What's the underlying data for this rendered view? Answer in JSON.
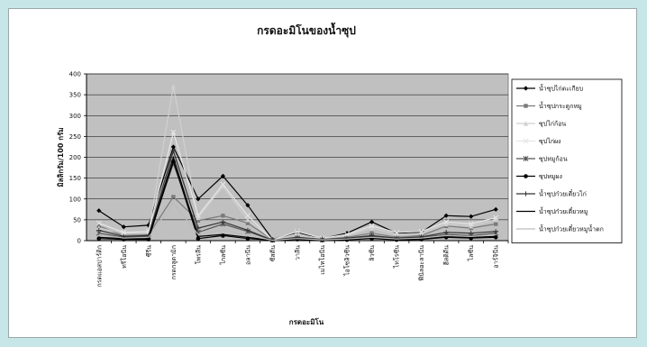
{
  "chart_data": {
    "type": "line",
    "title": "กรดอะมิโนของน้ำซุป",
    "xlabel": "กรดอะมิโน",
    "ylabel": "มิลลิกรัม/100 กรัม",
    "ylim": [
      0,
      400
    ],
    "yticks": [
      0,
      50,
      100,
      150,
      200,
      250,
      300,
      350,
      400
    ],
    "grid": true,
    "legend_position": "right",
    "plot_background": "#c0c0c0",
    "categories": [
      "กรดแอสปาร์ติก",
      "ทรีโอนีน",
      "ซีรีน",
      "กรดกลูตามิก",
      "โพรลีน",
      "ไกลซีน",
      "อลานีน",
      "ซีสตีน",
      "วาลีน",
      "เมไทโอนีน",
      "ไอโซลิวซีน",
      "ลิวซีน",
      "ไทโรซีน",
      "ฟีนิลอะลานีน",
      "ฮีสติดีน",
      "ไลซีน",
      "อาร์จินีน"
    ],
    "series": [
      {
        "name": "น้ำซุปไก่ตะเกียบ",
        "color": "#000000",
        "marker": "diamond",
        "values": [
          72,
          33,
          37,
          225,
          100,
          155,
          85,
          3,
          20,
          5,
          18,
          45,
          18,
          20,
          60,
          58,
          75
        ]
      },
      {
        "name": "น้ำซุปกระดูกหมู",
        "color": "#7a7a7a",
        "marker": "square",
        "values": [
          35,
          12,
          14,
          105,
          48,
          60,
          42,
          2,
          8,
          3,
          8,
          18,
          8,
          12,
          35,
          30,
          40
        ]
      },
      {
        "name": "ซุปไก่ก้อน",
        "color": "#d0d0d0",
        "marker": "triangle",
        "values": [
          30,
          18,
          20,
          370,
          55,
          130,
          50,
          2,
          15,
          5,
          12,
          30,
          15,
          18,
          40,
          35,
          50
        ]
      },
      {
        "name": "ซุปไก่ผง",
        "color": "#e6e6e6",
        "marker": "x",
        "values": [
          42,
          20,
          22,
          260,
          60,
          135,
          60,
          2,
          22,
          6,
          15,
          35,
          20,
          22,
          45,
          40,
          55
        ]
      },
      {
        "name": "ซุปหมูก้อน",
        "color": "#555555",
        "marker": "star",
        "values": [
          18,
          8,
          10,
          185,
          20,
          40,
          22,
          1,
          6,
          2,
          5,
          10,
          5,
          8,
          15,
          12,
          18
        ]
      },
      {
        "name": "ซุปหมูผง",
        "color": "#000000",
        "marker": "circle",
        "values": [
          5,
          3,
          3,
          190,
          5,
          12,
          5,
          1,
          3,
          1,
          2,
          5,
          2,
          3,
          8,
          6,
          8
        ]
      },
      {
        "name": "น้ำซุปก๋วยเตี๋ยวไก่",
        "color": "#333333",
        "marker": "plus",
        "values": [
          25,
          10,
          12,
          215,
          30,
          45,
          25,
          1,
          8,
          3,
          6,
          12,
          6,
          9,
          20,
          18,
          22
        ]
      },
      {
        "name": "น้ำซุปก๋วยเตี๋ยวหมู",
        "color": "#000000",
        "marker": "none",
        "values": [
          8,
          5,
          6,
          200,
          10,
          15,
          8,
          1,
          4,
          1,
          3,
          6,
          3,
          4,
          10,
          8,
          10
        ]
      },
      {
        "name": "น้ำซุปก๋วยเตี๋ยวหมูน้ำตก",
        "color": "#bcbcbc",
        "marker": "none",
        "values": [
          15,
          6,
          8,
          90,
          15,
          25,
          12,
          1,
          5,
          2,
          4,
          8,
          4,
          6,
          12,
          10,
          14
        ]
      }
    ]
  }
}
